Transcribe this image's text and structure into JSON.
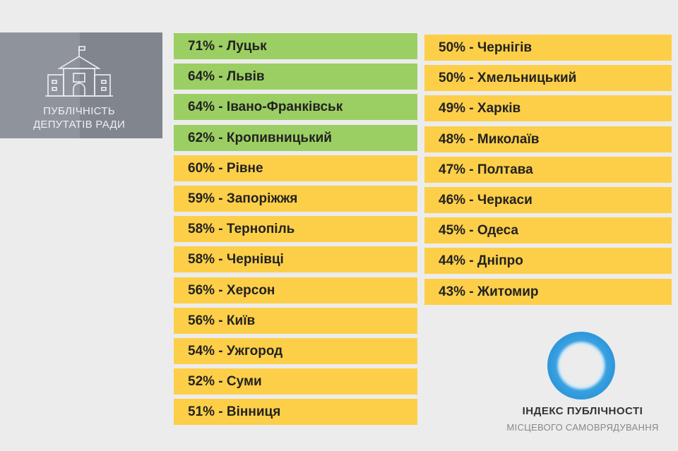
{
  "badge": {
    "line1": "ПУБЛІЧНІСТЬ",
    "line2": "ДЕПУТАТІВ РАДИ",
    "icon": "building-icon"
  },
  "colors": {
    "green": "#9ccf63",
    "yellow": "#fdcf48",
    "background": "#ececec",
    "logo_blue": "#2c97dc"
  },
  "left_list": [
    {
      "label": "71% - Луцьк",
      "color": "green"
    },
    {
      "label": "64% - Львів",
      "color": "green"
    },
    {
      "label": "64% - Івано-Франківськ",
      "color": "green"
    },
    {
      "label": "62% - Кропивницький",
      "color": "green"
    },
    {
      "label": "60% - Рівне",
      "color": "yellow"
    },
    {
      "label": "59% - Запоріжжя",
      "color": "yellow"
    },
    {
      "label": "58% - Тернопіль",
      "color": "yellow"
    },
    {
      "label": "58% - Чернівці",
      "color": "yellow"
    },
    {
      "label": "56% - Херсон",
      "color": "yellow"
    },
    {
      "label": "56% - Київ",
      "color": "yellow"
    },
    {
      "label": "54% - Ужгород",
      "color": "yellow"
    },
    {
      "label": "52% - Суми",
      "color": "yellow"
    },
    {
      "label": "51% - Вінниця",
      "color": "yellow"
    }
  ],
  "right_list": [
    {
      "label": "50% - Чернігів",
      "color": "yellow"
    },
    {
      "label": "50% - Хмельницький",
      "color": "yellow"
    },
    {
      "label": "49% - Харків",
      "color": "yellow"
    },
    {
      "label": "48% - Миколаїв",
      "color": "yellow"
    },
    {
      "label": "47% - Полтава",
      "color": "yellow"
    },
    {
      "label": "46% - Черкаси",
      "color": "yellow"
    },
    {
      "label": "45% - Одеса",
      "color": "yellow"
    },
    {
      "label": "44% - Дніпро",
      "color": "yellow"
    },
    {
      "label": "43% - Житомир",
      "color": "yellow"
    }
  ],
  "logo": {
    "line1": "ІНДЕКС ПУБЛІЧНОСТІ",
    "line2": "МІСЦЕВОГО САМОВРЯДУВАННЯ"
  }
}
